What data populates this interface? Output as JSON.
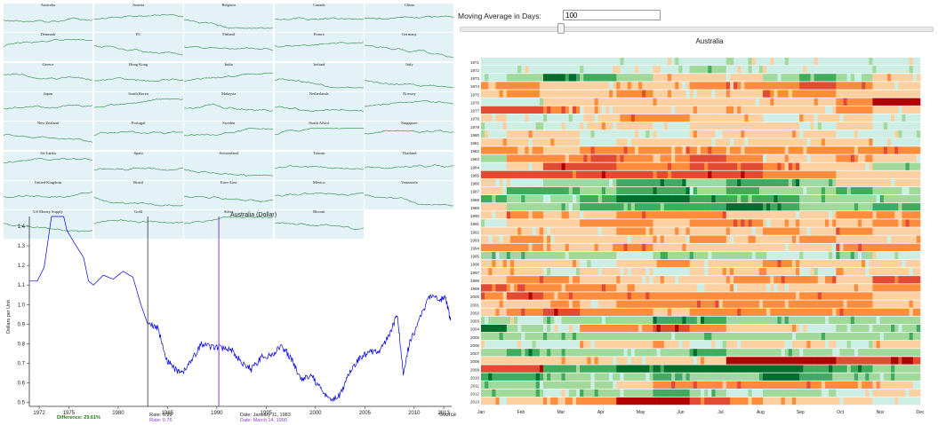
{
  "controls": {
    "moving_average_label": "Moving Average in Days:",
    "moving_average_value": "100"
  },
  "small_multiples": [
    {
      "label": "Australia"
    },
    {
      "label": "Austria"
    },
    {
      "label": "Belgium"
    },
    {
      "label": "Canada"
    },
    {
      "label": "China"
    },
    {
      "label": "Denmark"
    },
    {
      "label": "EC"
    },
    {
      "label": "Finland"
    },
    {
      "label": "France"
    },
    {
      "label": "Germany"
    },
    {
      "label": "Greece"
    },
    {
      "label": "Hong Kong"
    },
    {
      "label": "India"
    },
    {
      "label": "Ireland"
    },
    {
      "label": "Italy"
    },
    {
      "label": "Japan"
    },
    {
      "label": "South Korea"
    },
    {
      "label": "Malaysia"
    },
    {
      "label": "Netherlands"
    },
    {
      "label": "Norway"
    },
    {
      "label": "New Zealand"
    },
    {
      "label": "Portugal"
    },
    {
      "label": "Sweden"
    },
    {
      "label": "South Africa"
    },
    {
      "label": "Singapore"
    },
    {
      "label": "Sri Lanka"
    },
    {
      "label": "Spain"
    },
    {
      "label": "Switzerland"
    },
    {
      "label": "Taiwan"
    },
    {
      "label": "Thailand"
    },
    {
      "label": "United Kingdom"
    },
    {
      "label": "Brazil"
    },
    {
      "label": "Euro Area"
    },
    {
      "label": "Mexico"
    },
    {
      "label": "Venezuela"
    },
    {
      "label": "US Money Supply"
    },
    {
      "label": "Gold"
    },
    {
      "label": "Silver"
    },
    {
      "label": "Bitcoin"
    }
  ],
  "chart_data": [
    {
      "type": "line",
      "title": "Australia (Dollar)",
      "ylabel": "Dollars per Unit",
      "ylim": [
        0.48,
        1.45
      ],
      "xlim": [
        1971,
        2013.8
      ],
      "x_ticks": [
        "1972",
        "1975",
        "1980",
        "1985",
        "1990",
        "1995",
        "2000",
        "2005",
        "2010",
        "2013"
      ],
      "y_ticks": [
        "0.5",
        "0.6",
        "0.7",
        "0.8",
        "0.9",
        "1.0",
        "1.1",
        "1.2",
        "1.3",
        "1.4"
      ],
      "grid": false,
      "color": "#0000dd",
      "x": [
        1971,
        1971.8,
        1972.5,
        1973.3,
        1974.3,
        1974.8,
        1975.5,
        1976.5,
        1977.0,
        1977.5,
        1978.5,
        1979.5,
        1980.5,
        1981.5,
        1982.3,
        1983.0,
        1984.0,
        1985.0,
        1985.8,
        1986.5,
        1987.5,
        1988.5,
        1989.5,
        1990.5,
        1991.5,
        1992.5,
        1993.5,
        1994.5,
        1995.5,
        1996.5,
        1997.5,
        1998.5,
        1999.5,
        2000.5,
        2001.5,
        2002.5,
        2003.5,
        2004.5,
        2005.5,
        2006.5,
        2007.5,
        2008.3,
        2008.9,
        2009.5,
        2010.5,
        2011.5,
        2012.5,
        2013.2,
        2013.7
      ],
      "y": [
        1.12,
        1.12,
        1.19,
        1.47,
        1.49,
        1.38,
        1.32,
        1.24,
        1.12,
        1.1,
        1.15,
        1.13,
        1.17,
        1.14,
        1.0,
        0.9,
        0.88,
        0.71,
        0.67,
        0.65,
        0.72,
        0.8,
        0.78,
        0.78,
        0.77,
        0.7,
        0.67,
        0.73,
        0.74,
        0.79,
        0.73,
        0.62,
        0.64,
        0.57,
        0.51,
        0.54,
        0.66,
        0.73,
        0.76,
        0.76,
        0.85,
        0.95,
        0.64,
        0.8,
        0.92,
        1.04,
        1.03,
        1.03,
        0.92
      ],
      "markers": [
        {
          "x": 1983.0,
          "color": "#333333",
          "rate_label": "Rate: 0.99",
          "date_label": "Date: January 11, 1983"
        },
        {
          "x": 1990.2,
          "color": "#8a3fc8",
          "rate_label": "Rate: 0.76",
          "date_label": "Date: March 14, 1990"
        }
      ],
      "difference_label": "Difference: 29.61%",
      "source_label": "Source"
    },
    {
      "type": "heatmap",
      "title": "Australia",
      "years": [
        "1971",
        "1972",
        "1973",
        "1974",
        "1975",
        "1976",
        "1977",
        "1978",
        "1979",
        "1980",
        "1981",
        "1982",
        "1983",
        "1984",
        "1985",
        "1986",
        "1987",
        "1988",
        "1989",
        "1990",
        "1991",
        "1992",
        "1993",
        "1994",
        "1995",
        "1996",
        "1997",
        "1998",
        "1999",
        "2000",
        "2001",
        "2002",
        "2003",
        "2004",
        "2005",
        "2006",
        "2007",
        "2008",
        "2009",
        "2010",
        "2011",
        "2012",
        "2013"
      ],
      "months": [
        "Jan",
        "Feb",
        "Mar",
        "Apr",
        "May",
        "Jun",
        "Jul",
        "Aug",
        "Sep",
        "Oct",
        "Nov",
        "Dec"
      ],
      "color_scale": [
        "#006d2c",
        "#41ab5d",
        "#a1d99b",
        "#cdeee4",
        "#fdd0a2",
        "#fd8d3c",
        "#e34a33",
        "#b30000"
      ],
      "value_scale": [
        -3,
        -2,
        -1,
        0,
        1,
        2,
        3,
        4
      ],
      "values": [
        [
          0,
          0,
          0,
          0,
          0,
          0,
          0,
          0,
          0,
          0,
          0,
          0
        ],
        [
          0,
          0,
          0,
          0,
          0,
          0,
          -1,
          0,
          0,
          0,
          0,
          0
        ],
        [
          0,
          -1,
          -3,
          -2,
          -1,
          1,
          1,
          1,
          -1,
          -2,
          -1,
          1
        ],
        [
          2,
          2,
          1,
          1,
          1,
          1,
          2,
          2,
          2,
          3,
          2,
          1
        ],
        [
          1,
          2,
          1,
          1,
          2,
          1,
          1,
          1,
          2,
          2,
          1,
          1
        ],
        [
          0,
          0,
          1,
          1,
          1,
          1,
          1,
          1,
          1,
          1,
          2,
          4
        ],
        [
          3,
          3,
          2,
          1,
          1,
          1,
          1,
          1,
          1,
          1,
          2,
          1
        ],
        [
          1,
          0,
          0,
          1,
          2,
          2,
          1,
          1,
          0,
          1,
          1,
          0
        ],
        [
          0,
          0,
          0,
          1,
          1,
          0,
          1,
          1,
          1,
          0,
          1,
          0
        ],
        [
          0,
          1,
          1,
          0,
          0,
          0,
          1,
          1,
          1,
          1,
          0,
          0
        ],
        [
          1,
          1,
          1,
          0,
          1,
          1,
          1,
          1,
          1,
          1,
          1,
          0
        ],
        [
          2,
          2,
          1,
          2,
          2,
          2,
          2,
          2,
          2,
          2,
          2,
          2
        ],
        [
          -1,
          2,
          2,
          3,
          2,
          2,
          3,
          2,
          1,
          1,
          2,
          1
        ],
        [
          0,
          1,
          3,
          3,
          2,
          2,
          3,
          3,
          2,
          1,
          1,
          -1
        ],
        [
          3,
          3,
          3,
          3,
          3,
          3,
          3,
          3,
          2,
          2,
          1,
          1
        ],
        [
          1,
          0,
          -1,
          -1,
          -2,
          -2,
          -1,
          -2,
          -2,
          -1,
          1,
          1
        ],
        [
          1,
          -2,
          -2,
          -1,
          -2,
          -2,
          -1,
          -2,
          -1,
          -1,
          -2,
          -1
        ],
        [
          -2,
          -1,
          -1,
          -2,
          -3,
          -3,
          -2,
          -2,
          -2,
          -1,
          -1,
          -1
        ],
        [
          1,
          -1,
          -1,
          -2,
          -2,
          -2,
          -2,
          -3,
          -2,
          -1,
          -1,
          -2
        ],
        [
          1,
          2,
          1,
          1,
          2,
          2,
          2,
          1,
          1,
          1,
          2,
          2
        ],
        [
          0,
          1,
          1,
          2,
          2,
          1,
          2,
          2,
          1,
          1,
          1,
          2
        ],
        [
          1,
          1,
          1,
          1,
          2,
          1,
          1,
          1,
          2,
          1,
          2,
          1
        ],
        [
          1,
          2,
          1,
          1,
          1,
          1,
          2,
          1,
          1,
          2,
          1,
          1
        ],
        [
          2,
          2,
          1,
          1,
          2,
          1,
          1,
          1,
          1,
          1,
          2,
          2
        ],
        [
          -1,
          -1,
          -1,
          -1,
          0,
          -1,
          -1,
          -1,
          0,
          0,
          -1,
          0
        ],
        [
          1,
          1,
          1,
          0,
          1,
          2,
          1,
          1,
          2,
          1,
          1,
          1
        ],
        [
          1,
          1,
          0,
          1,
          1,
          0,
          1,
          1,
          1,
          0,
          1,
          1
        ],
        [
          1,
          2,
          2,
          1,
          1,
          1,
          1,
          2,
          2,
          2,
          1,
          3
        ],
        [
          3,
          2,
          2,
          2,
          1,
          1,
          1,
          1,
          1,
          1,
          1,
          2
        ],
        [
          2,
          3,
          2,
          2,
          2,
          2,
          2,
          2,
          2,
          2,
          2,
          1
        ],
        [
          1,
          1,
          2,
          1,
          2,
          2,
          2,
          2,
          2,
          2,
          2,
          1
        ],
        [
          1,
          2,
          3,
          2,
          2,
          1,
          2,
          2,
          2,
          2,
          2,
          2
        ],
        [
          -1,
          0,
          -1,
          -1,
          -1,
          -2,
          -2,
          -1,
          -1,
          -1,
          -1,
          -1
        ],
        [
          -3,
          -1,
          0,
          2,
          2,
          3,
          2,
          1,
          1,
          0,
          -1,
          -1
        ],
        [
          -1,
          -1,
          -1,
          -1,
          -1,
          -1,
          -1,
          -1,
          -1,
          -1,
          -1,
          -1
        ],
        [
          0,
          0,
          0,
          1,
          1,
          1,
          0,
          1,
          1,
          1,
          0,
          1
        ],
        [
          -1,
          -2,
          -1,
          -1,
          -1,
          -1,
          -2,
          -1,
          -1,
          -1,
          -1,
          -1
        ],
        [
          1,
          1,
          1,
          1,
          1,
          1,
          1,
          4,
          4,
          4,
          3,
          3
        ],
        [
          3,
          3,
          -2,
          -2,
          -3,
          -3,
          -3,
          -3,
          -3,
          -2,
          -2,
          -1
        ],
        [
          -2,
          -2,
          -1,
          -1,
          -1,
          -2,
          -1,
          -1,
          -3,
          -2,
          -1,
          -1
        ],
        [
          -1,
          -1,
          -1,
          -1,
          1,
          2,
          2,
          2,
          2,
          2,
          2,
          1
        ],
        [
          -1,
          -1,
          0,
          -1,
          -1,
          -2,
          -1,
          0,
          -1,
          -1,
          0,
          1
        ],
        [
          1,
          1,
          2,
          2,
          4,
          4,
          3,
          2,
          1,
          1,
          1,
          0
        ]
      ]
    }
  ]
}
